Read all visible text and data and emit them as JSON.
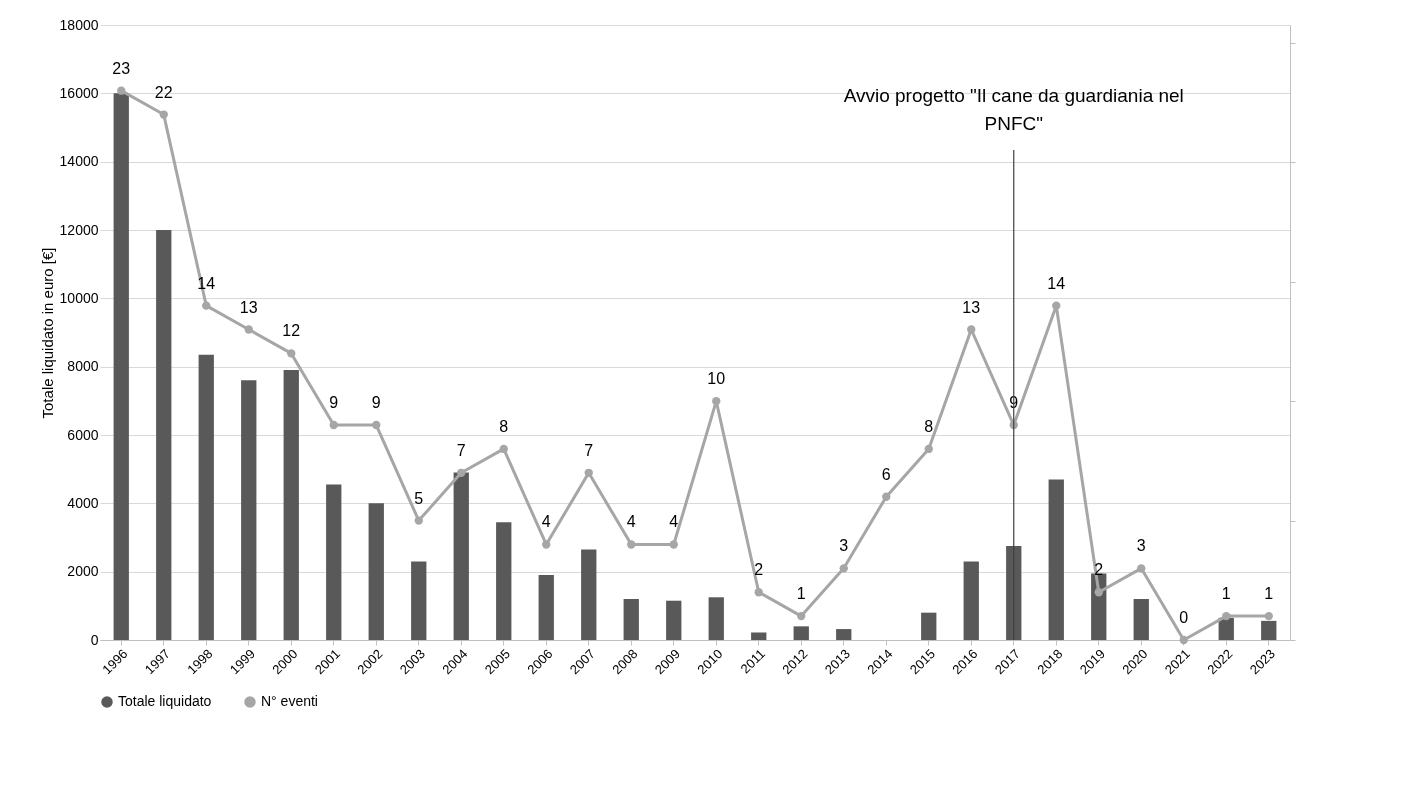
{
  "chart_data": {
    "type": "bar",
    "ylabel": "Totale liquidato in euro [€]",
    "categories": [
      "1996",
      "1997",
      "1998",
      "1999",
      "2000",
      "2001",
      "2002",
      "2003",
      "2004",
      "2005",
      "2006",
      "2007",
      "2008",
      "2009",
      "2010",
      "2011",
      "2012",
      "2013",
      "2014",
      "2015",
      "2016",
      "2017",
      "2018",
      "2019",
      "2020",
      "2021",
      "2022",
      "2023"
    ],
    "series": [
      {
        "name": "Totale liquidato",
        "color": "#595959",
        "values": [
          16000,
          12000,
          8350,
          7600,
          7900,
          4550,
          4000,
          2300,
          4900,
          3450,
          1900,
          2650,
          1200,
          1150,
          1250,
          220,
          400,
          320,
          0,
          800,
          2300,
          2750,
          4700,
          1950,
          1200,
          0,
          650,
          560
        ]
      },
      {
        "name": "N° eventi",
        "type": "line",
        "axis": "y2",
        "color": "#a6a6a6",
        "marker": "circle",
        "values": [
          23,
          22,
          14,
          13,
          12,
          9,
          9,
          5,
          7,
          8,
          4,
          7,
          4,
          4,
          10,
          2,
          1,
          3,
          6,
          8,
          13,
          9,
          14,
          2,
          3,
          0,
          1,
          1
        ],
        "value_labels": [
          "23",
          "22",
          "14",
          "13",
          "12",
          "9",
          "9",
          "5",
          "7",
          "8",
          "4",
          "7",
          "4",
          "4",
          "10",
          "2",
          "1",
          "3",
          "6",
          "8",
          "13",
          "9",
          "14",
          "2",
          "3",
          "0",
          "1",
          "1"
        ]
      }
    ],
    "ylim": [
      0,
      18000
    ],
    "yticks": [
      0,
      2000,
      4000,
      6000,
      8000,
      10000,
      12000,
      14000,
      16000,
      18000
    ],
    "y2lim": [
      0,
      25.75
    ],
    "y2ticks": [
      {
        "value": 0,
        "label": null
      },
      {
        "value": 5,
        "label": null
      },
      {
        "value": 10,
        "label": null
      },
      {
        "value": 15,
        "label": null
      },
      {
        "value": 20,
        "label": null
      },
      {
        "value": 25,
        "label": null
      }
    ],
    "ref_lines": [
      {
        "axis": "x",
        "value": "2017",
        "label": "Avvio progetto \"Il cane da guardiania nel PNFC\"",
        "color": "#404040"
      }
    ],
    "grid": "y",
    "legend": "bottom"
  }
}
